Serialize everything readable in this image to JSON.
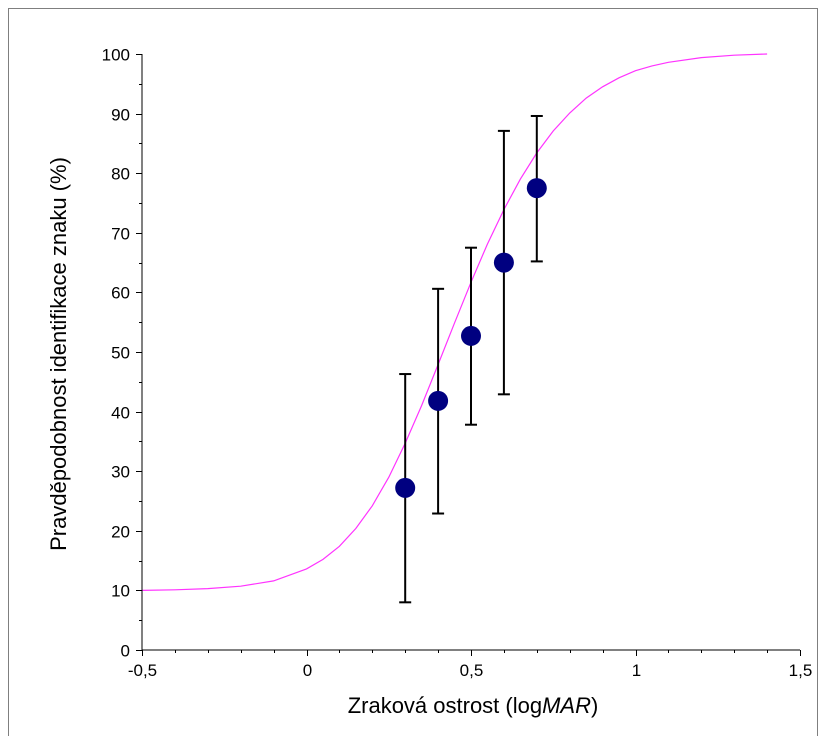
{
  "chart_data": {
    "type": "scatter",
    "title": "",
    "xlabel": "Zraková ostrost (logMAR)",
    "xlabel_plain": "Zraková ostrost (log",
    "xlabel_italic": "MAR",
    "xlabel_close": ")",
    "ylabel": "Pravděpodobnost identifikace znaku (%)",
    "xlim": [
      -0.5,
      1.5
    ],
    "ylim": [
      0,
      100
    ],
    "xticks": [
      -0.5,
      0,
      0.5,
      1,
      1.5
    ],
    "xtick_labels": [
      "-0,5",
      "0",
      "0,5",
      "1",
      "1,5"
    ],
    "yticks": [
      0,
      10,
      20,
      30,
      40,
      50,
      60,
      70,
      80,
      90,
      100
    ],
    "ytick_labels": [
      "0",
      "10",
      "20",
      "30",
      "40",
      "50",
      "60",
      "70",
      "80",
      "90",
      "100"
    ],
    "grid": false,
    "legend": "none",
    "series": [
      {
        "type": "scatter",
        "x": [
          0.3,
          0.4,
          0.5,
          0.6,
          0.7
        ],
        "y": [
          27.2,
          41.8,
          52.7,
          65.0,
          77.5
        ],
        "yerr_low": [
          8.0,
          22.9,
          37.8,
          42.9,
          65.2
        ],
        "yerr_high": [
          46.3,
          60.6,
          67.5,
          87.1,
          89.6
        ],
        "color": "#000080"
      },
      {
        "type": "line",
        "x": [
          -0.5,
          -0.4,
          -0.3,
          -0.2,
          -0.1,
          0.0,
          0.05,
          0.1,
          0.15,
          0.2,
          0.25,
          0.3,
          0.35,
          0.4,
          0.45,
          0.5,
          0.55,
          0.6,
          0.65,
          0.7,
          0.75,
          0.8,
          0.85,
          0.9,
          0.95,
          1.0,
          1.05,
          1.1,
          1.2,
          1.3,
          1.4
        ],
        "y": [
          10.0,
          10.1,
          10.3,
          10.7,
          11.6,
          13.6,
          15.2,
          17.4,
          20.4,
          24.2,
          29.0,
          34.7,
          41.0,
          47.9,
          54.9,
          61.7,
          68.1,
          73.9,
          79.0,
          83.4,
          87.1,
          90.1,
          92.6,
          94.5,
          96.0,
          97.2,
          98.0,
          98.6,
          99.4,
          99.8,
          100.0
        ],
        "color": "#ff33ff"
      }
    ]
  }
}
